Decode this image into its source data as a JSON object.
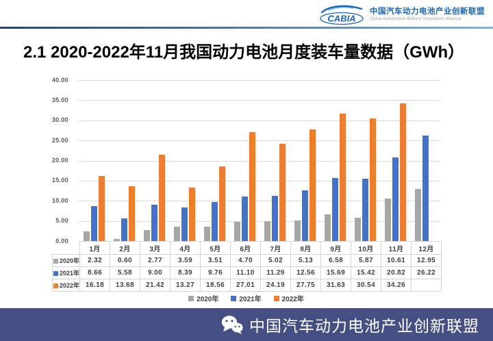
{
  "header": {
    "logo": {
      "acronym": "CABIA",
      "name_cn": "中国汽车动力电池产业创新联盟",
      "name_en": "China Automotive Battery Innovation Alliance"
    }
  },
  "title": "2.1 2020-2022年11月我国动力电池月度装车量数据（GWh）",
  "chart_data": {
    "type": "bar",
    "title": "2020-2022年11月我国动力电池月度装车量数据（GWh）",
    "categories": [
      "1月",
      "2月",
      "3月",
      "4月",
      "5月",
      "6月",
      "7月",
      "8月",
      "9月",
      "10月",
      "11月",
      "12月"
    ],
    "series": [
      {
        "name": "2020年",
        "color": "#A6A6A6",
        "values": [
          2.32,
          0.6,
          2.77,
          3.59,
          3.51,
          4.7,
          5.02,
          5.13,
          6.58,
          5.87,
          10.61,
          12.95
        ]
      },
      {
        "name": "2021年",
        "color": "#4472C4",
        "values": [
          8.66,
          5.58,
          9.0,
          8.39,
          9.76,
          11.1,
          11.29,
          12.56,
          15.69,
          15.42,
          20.82,
          26.22
        ]
      },
      {
        "name": "2022年",
        "color": "#ED7D31",
        "values": [
          16.18,
          13.68,
          21.42,
          13.27,
          18.56,
          27.01,
          24.19,
          27.75,
          31.63,
          30.54,
          34.26,
          null
        ]
      }
    ],
    "xlabel": "",
    "ylabel": "",
    "ylim": [
      0,
      40
    ],
    "ytick_step": 5,
    "ytick_labels": [
      "0.00",
      "5.00",
      "10.00",
      "15.00",
      "20.00",
      "25.00",
      "30.00",
      "35.00",
      "40.00"
    ],
    "grid": true,
    "legend_position": "bottom",
    "data_table_shown": true
  },
  "footer": {
    "org_name": "中国汽车动力电池产业创新联盟"
  },
  "colors": {
    "footer_bar": "#464F82",
    "header_line_left": "#24407E",
    "header_line_right": "#7FB2E5",
    "logo_blue": "#1B66B0",
    "grid": "#D9D9D9"
  }
}
